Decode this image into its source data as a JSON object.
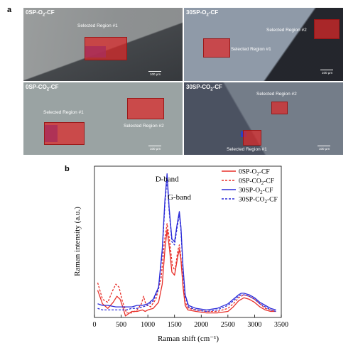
{
  "figure": {
    "panel_a_label": "a",
    "panel_b_label": "b"
  },
  "micrographs": [
    {
      "title_pre": "0SP-O",
      "title_sub": "2",
      "title_post": "-CF",
      "regions": [
        {
          "label": "Selected Region #1"
        }
      ],
      "scale_label": "100 μm"
    },
    {
      "title_pre": "30SP-O",
      "title_sub": "2",
      "title_post": "-CF",
      "regions": [
        {
          "label": "Selected Region #2"
        },
        {
          "label": "Selected Region #1"
        }
      ],
      "scale_label": "100 μm"
    },
    {
      "title_pre": "0SP-CO",
      "title_sub": "2",
      "title_post": "-CF",
      "regions": [
        {
          "label": "Selected Region #1"
        },
        {
          "label": "Selected Region #2"
        }
      ],
      "scale_label": "100 μm"
    },
    {
      "title_pre": "30SP-CO",
      "title_sub": "2",
      "title_post": "-CF",
      "regions": [
        {
          "label": "Selected Region #2"
        },
        {
          "label": "Selected Region #1"
        }
      ],
      "scale_label": "100 μm"
    }
  ],
  "chart_data": {
    "type": "line",
    "xlabel": "Raman shift (cm⁻¹)",
    "ylabel": "Raman intensity (a.u.)",
    "xlim": [
      0,
      3500
    ],
    "x_ticks": [
      "0",
      "500",
      "1000",
      "1500",
      "2000",
      "2500",
      "3000",
      "3500"
    ],
    "grid": false,
    "legend_position": "top-right",
    "annotations": [
      {
        "text": "D-band",
        "x": 1360,
        "y": 0.9
      },
      {
        "text": "G-band",
        "x": 1590,
        "y": 0.78
      }
    ],
    "series": [
      {
        "name": "0SP-O2-CF",
        "name_pre": "0SP-O",
        "name_sub": "2",
        "name_post": "-CF",
        "color": "#e8302a",
        "dash": false,
        "x": [
          60,
          150,
          250,
          350,
          420,
          480,
          530,
          580,
          700,
          800,
          900,
          950,
          1000,
          1100,
          1200,
          1270,
          1320,
          1360,
          1400,
          1450,
          1500,
          1560,
          1590,
          1620,
          1660,
          1700,
          1750,
          1900,
          2100,
          2300,
          2500,
          2600,
          2700,
          2800,
          2900,
          3000,
          3100,
          3200,
          3300,
          3400
        ],
        "y": [
          0.18,
          0.09,
          0.06,
          0.1,
          0.14,
          0.12,
          0.07,
          0.01,
          0.04,
          0.04,
          0.05,
          0.04,
          0.05,
          0.06,
          0.1,
          0.22,
          0.45,
          0.58,
          0.47,
          0.3,
          0.28,
          0.4,
          0.45,
          0.38,
          0.2,
          0.08,
          0.05,
          0.04,
          0.03,
          0.03,
          0.04,
          0.07,
          0.11,
          0.13,
          0.12,
          0.1,
          0.07,
          0.05,
          0.04,
          0.04
        ]
      },
      {
        "name": "0SP-CO2-CF",
        "name_pre": "0SP-CO",
        "name_sub": "2",
        "name_post": "-CF",
        "color": "#e8302a",
        "dash": true,
        "x": [
          60,
          150,
          250,
          330,
          400,
          460,
          520,
          600,
          700,
          800,
          880,
          920,
          960,
          1050,
          1150,
          1250,
          1310,
          1360,
          1410,
          1460,
          1510,
          1560,
          1590,
          1620,
          1660,
          1700,
          1760,
          1900,
          2100,
          2300,
          2500,
          2600,
          2700,
          2800,
          2900,
          3000,
          3100,
          3200,
          3300,
          3400
        ],
        "y": [
          0.23,
          0.12,
          0.1,
          0.17,
          0.22,
          0.2,
          0.11,
          0.03,
          0.03,
          0.05,
          0.09,
          0.14,
          0.09,
          0.07,
          0.12,
          0.26,
          0.5,
          0.62,
          0.5,
          0.34,
          0.31,
          0.44,
          0.48,
          0.4,
          0.22,
          0.1,
          0.06,
          0.05,
          0.04,
          0.04,
          0.06,
          0.09,
          0.13,
          0.15,
          0.14,
          0.12,
          0.09,
          0.06,
          0.05,
          0.04
        ]
      },
      {
        "name": "30SP-O2-CF",
        "name_pre": "30SP-O",
        "name_sub": "2",
        "name_post": "-CF",
        "color": "#2b2bd8",
        "dash": false,
        "x": [
          60,
          150,
          250,
          400,
          500,
          600,
          700,
          800,
          900,
          1000,
          1100,
          1200,
          1270,
          1320,
          1360,
          1400,
          1450,
          1500,
          1550,
          1590,
          1620,
          1660,
          1700,
          1760,
          1900,
          2100,
          2300,
          2500,
          2600,
          2700,
          2750,
          2800,
          2900,
          3000,
          3100,
          3200,
          3300,
          3400
        ],
        "y": [
          0.09,
          0.08,
          0.08,
          0.07,
          0.07,
          0.07,
          0.07,
          0.08,
          0.08,
          0.09,
          0.12,
          0.2,
          0.45,
          0.78,
          0.95,
          0.72,
          0.52,
          0.5,
          0.62,
          0.7,
          0.6,
          0.33,
          0.15,
          0.08,
          0.06,
          0.05,
          0.06,
          0.09,
          0.12,
          0.15,
          0.16,
          0.16,
          0.15,
          0.13,
          0.1,
          0.08,
          0.06,
          0.05
        ]
      },
      {
        "name": "30SP-CO2-CF",
        "name_pre": "30SP-CO",
        "name_sub": "2",
        "name_post": "-CF",
        "color": "#2b2bd8",
        "dash": true,
        "x": [
          60,
          150,
          250,
          400,
          500,
          600,
          700,
          800,
          900,
          1000,
          1100,
          1200,
          1270,
          1320,
          1360,
          1400,
          1450,
          1500,
          1550,
          1590,
          1620,
          1660,
          1700,
          1760,
          1900,
          2100,
          2300,
          2500,
          2600,
          2700,
          2750,
          2800,
          2900,
          3000,
          3100,
          3200,
          3300,
          3400
        ],
        "y": [
          0.06,
          0.05,
          0.05,
          0.05,
          0.05,
          0.05,
          0.06,
          0.06,
          0.07,
          0.08,
          0.11,
          0.19,
          0.43,
          0.75,
          0.92,
          0.7,
          0.5,
          0.48,
          0.6,
          0.68,
          0.58,
          0.31,
          0.14,
          0.07,
          0.05,
          0.04,
          0.05,
          0.08,
          0.11,
          0.14,
          0.15,
          0.15,
          0.14,
          0.12,
          0.09,
          0.07,
          0.05,
          0.04
        ]
      }
    ]
  }
}
